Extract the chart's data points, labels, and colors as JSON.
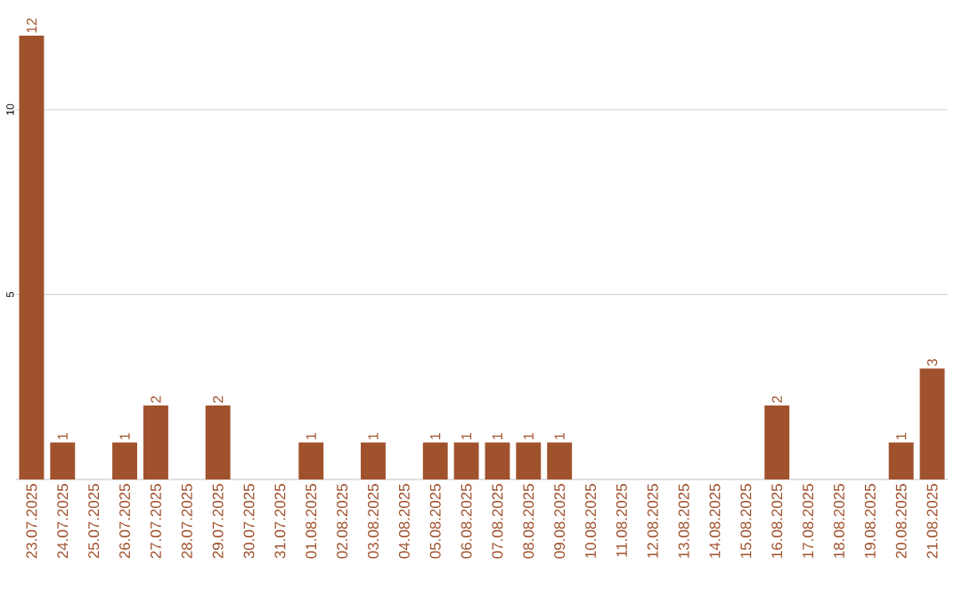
{
  "chart_data": {
    "type": "bar",
    "categories": [
      "23.07.2025",
      "24.07.2025",
      "25.07.2025",
      "26.07.2025",
      "27.07.2025",
      "28.07.2025",
      "29.07.2025",
      "30.07.2025",
      "31.07.2025",
      "01.08.2025",
      "02.08.2025",
      "03.08.2025",
      "04.08.2025",
      "05.08.2025",
      "06.08.2025",
      "07.08.2025",
      "08.08.2025",
      "09.08.2025",
      "10.08.2025",
      "11.08.2025",
      "12.08.2025",
      "13.08.2025",
      "14.08.2025",
      "15.08.2025",
      "16.08.2025",
      "17.08.2025",
      "18.08.2025",
      "19.08.2025",
      "20.08.2025",
      "21.08.2025"
    ],
    "values": [
      12,
      1,
      0,
      1,
      2,
      0,
      2,
      0,
      0,
      1,
      0,
      1,
      0,
      1,
      1,
      1,
      1,
      1,
      0,
      0,
      0,
      0,
      0,
      0,
      2,
      0,
      0,
      0,
      1,
      3
    ],
    "value_labels": [
      "12",
      "1",
      null,
      "1",
      "2",
      null,
      "2",
      null,
      null,
      "1",
      null,
      "1",
      null,
      "1",
      "1",
      "1",
      "1",
      "1",
      null,
      null,
      null,
      null,
      null,
      null,
      "2",
      null,
      null,
      null,
      "1",
      "3"
    ],
    "color": "#a0522d",
    "ylim": [
      0,
      12
    ],
    "yticks": [
      5,
      10
    ],
    "grid": "y"
  }
}
